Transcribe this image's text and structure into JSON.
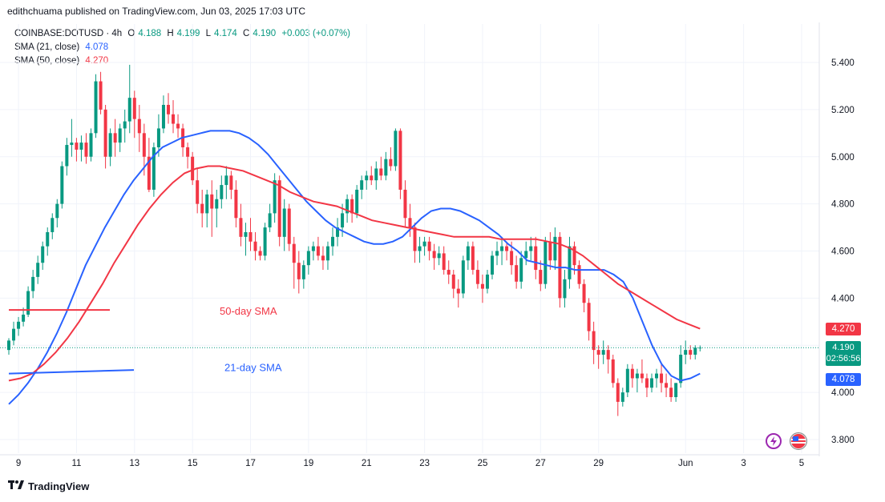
{
  "header": {
    "publisher_line": "edithchuama published on TradingView.com, Jun 03, 2025 17:03 UTC"
  },
  "legend": {
    "symbol": "COINBASE:DOTUSD · 4h",
    "o_key": "O",
    "o_val": "4.188",
    "h_key": "H",
    "h_val": "4.199",
    "l_key": "L",
    "l_val": "4.174",
    "c_key": "C",
    "c_val": "4.190",
    "change": "+0.003 (+0.07%)",
    "sma21_label": "SMA (21, close)",
    "sma21_val": "4.078",
    "sma50_label": "SMA (50, close)",
    "sma50_val": "4.270"
  },
  "tags": {
    "sma50": "4.270",
    "price": "4.190",
    "countdown": "02:56:56",
    "sma21": "4.078"
  },
  "footer": {
    "brand": "TradingView"
  },
  "colors": {
    "up": "#089981",
    "down": "#f23645",
    "sma21": "#2962ff",
    "sma50": "#f23645"
  },
  "chart_data": {
    "type": "candlestick",
    "timeframe": "4h",
    "ylim": [
      3.75,
      5.5
    ],
    "y_ticks": [
      "5.400",
      "5.200",
      "5.000",
      "4.800",
      "4.600",
      "4.400",
      "4.200",
      "4.000",
      "3.800"
    ],
    "y_tick_values": [
      5.4,
      5.2,
      5.0,
      4.8,
      4.6,
      4.4,
      4.2,
      4.0,
      3.8
    ],
    "x_ticks": [
      "9",
      "11",
      "13",
      "15",
      "17",
      "19",
      "21",
      "23",
      "25",
      "27",
      "29",
      "Jun",
      "3",
      "5"
    ],
    "x_tick_index": [
      3,
      15,
      27,
      39,
      51,
      63,
      75,
      87,
      99,
      111,
      123,
      141,
      153,
      165
    ],
    "annotations": [
      {
        "text": "50-day SMA"
      },
      {
        "text": "21-day SMA"
      }
    ],
    "candles": [
      [
        4.18,
        4.23,
        4.16,
        4.22
      ],
      [
        4.22,
        4.3,
        4.2,
        4.27
      ],
      [
        4.27,
        4.32,
        4.24,
        4.3
      ],
      [
        4.3,
        4.36,
        4.28,
        4.33
      ],
      [
        4.33,
        4.45,
        4.32,
        4.43
      ],
      [
        4.43,
        4.52,
        4.4,
        4.49
      ],
      [
        4.49,
        4.58,
        4.46,
        4.55
      ],
      [
        4.55,
        4.64,
        4.52,
        4.62
      ],
      [
        4.62,
        4.7,
        4.58,
        4.68
      ],
      [
        4.68,
        4.76,
        4.65,
        4.74
      ],
      [
        4.74,
        4.82,
        4.7,
        4.8
      ],
      [
        4.8,
        4.98,
        4.78,
        4.96
      ],
      [
        4.96,
        5.08,
        4.92,
        5.05
      ],
      [
        5.05,
        5.16,
        5.0,
        5.06
      ],
      [
        5.06,
        5.08,
        4.98,
        5.03
      ],
      [
        5.03,
        5.09,
        4.98,
        5.06
      ],
      [
        5.06,
        5.1,
        4.97,
        5.0
      ],
      [
        5.0,
        5.12,
        4.98,
        5.1
      ],
      [
        5.1,
        5.35,
        5.08,
        5.32
      ],
      [
        5.32,
        5.36,
        5.18,
        5.2
      ],
      [
        5.2,
        5.22,
        4.95,
        5.0
      ],
      [
        5.0,
        5.12,
        4.96,
        5.1
      ],
      [
        5.1,
        5.16,
        5.0,
        5.06
      ],
      [
        5.06,
        5.14,
        5.02,
        5.12
      ],
      [
        5.12,
        5.2,
        5.06,
        5.15
      ],
      [
        5.15,
        5.39,
        5.1,
        5.25
      ],
      [
        5.25,
        5.28,
        5.08,
        5.16
      ],
      [
        5.16,
        5.22,
        5.02,
        5.1
      ],
      [
        5.1,
        5.14,
        4.92,
        5.0
      ],
      [
        5.0,
        5.08,
        4.85,
        4.86
      ],
      [
        4.86,
        5.06,
        4.83,
        5.04
      ],
      [
        5.04,
        5.18,
        5.0,
        5.12
      ],
      [
        5.12,
        5.26,
        5.1,
        5.22
      ],
      [
        5.22,
        5.27,
        5.14,
        5.18
      ],
      [
        5.18,
        5.24,
        5.1,
        5.14
      ],
      [
        5.14,
        5.18,
        5.08,
        5.12
      ],
      [
        5.12,
        5.14,
        5.0,
        5.04
      ],
      [
        5.04,
        5.06,
        4.95,
        5.0
      ],
      [
        5.0,
        5.02,
        4.88,
        4.9
      ],
      [
        4.9,
        4.95,
        4.76,
        4.8
      ],
      [
        4.8,
        4.86,
        4.7,
        4.76
      ],
      [
        4.76,
        4.86,
        4.7,
        4.84
      ],
      [
        4.84,
        4.9,
        4.66,
        4.78
      ],
      [
        4.78,
        4.86,
        4.7,
        4.82
      ],
      [
        4.82,
        4.92,
        4.78,
        4.88
      ],
      [
        4.88,
        4.96,
        4.82,
        4.92
      ],
      [
        4.92,
        4.94,
        4.82,
        4.86
      ],
      [
        4.86,
        4.9,
        4.7,
        4.74
      ],
      [
        4.74,
        4.8,
        4.62,
        4.66
      ],
      [
        4.66,
        4.72,
        4.58,
        4.68
      ],
      [
        4.68,
        4.74,
        4.6,
        4.64
      ],
      [
        4.64,
        4.68,
        4.56,
        4.6
      ],
      [
        4.6,
        4.62,
        4.56,
        4.58
      ],
      [
        4.58,
        4.72,
        4.56,
        4.7
      ],
      [
        4.7,
        4.8,
        4.68,
        4.76
      ],
      [
        4.76,
        4.93,
        4.72,
        4.9
      ],
      [
        4.9,
        4.92,
        4.62,
        4.66
      ],
      [
        4.66,
        4.82,
        4.6,
        4.78
      ],
      [
        4.78,
        4.8,
        4.6,
        4.63
      ],
      [
        4.63,
        4.66,
        4.44,
        4.55
      ],
      [
        4.55,
        4.6,
        4.42,
        4.48
      ],
      [
        4.48,
        4.56,
        4.44,
        4.54
      ],
      [
        4.54,
        4.62,
        4.5,
        4.6
      ],
      [
        4.6,
        4.64,
        4.56,
        4.62
      ],
      [
        4.62,
        4.66,
        4.56,
        4.58
      ],
      [
        4.58,
        4.62,
        4.52,
        4.56
      ],
      [
        4.56,
        4.64,
        4.52,
        4.62
      ],
      [
        4.62,
        4.7,
        4.58,
        4.66
      ],
      [
        4.66,
        4.74,
        4.62,
        4.7
      ],
      [
        4.7,
        4.8,
        4.66,
        4.76
      ],
      [
        4.76,
        4.84,
        4.72,
        4.82
      ],
      [
        4.82,
        4.84,
        4.72,
        4.76
      ],
      [
        4.76,
        4.88,
        4.74,
        4.86
      ],
      [
        4.86,
        4.92,
        4.82,
        4.9
      ],
      [
        4.9,
        4.94,
        4.86,
        4.92
      ],
      [
        4.92,
        4.96,
        4.88,
        4.9
      ],
      [
        4.9,
        4.98,
        4.86,
        4.95
      ],
      [
        4.95,
        5.0,
        4.9,
        4.92
      ],
      [
        4.92,
        5.02,
        4.9,
        4.99
      ],
      [
        4.99,
        5.04,
        4.94,
        4.96
      ],
      [
        4.96,
        5.12,
        4.94,
        5.11
      ],
      [
        5.11,
        5.12,
        4.82,
        4.86
      ],
      [
        4.86,
        4.9,
        4.7,
        4.74
      ],
      [
        4.74,
        4.8,
        4.66,
        4.7
      ],
      [
        4.7,
        4.72,
        4.55,
        4.6
      ],
      [
        4.6,
        4.66,
        4.55,
        4.62
      ],
      [
        4.62,
        4.66,
        4.58,
        4.64
      ],
      [
        4.64,
        4.66,
        4.56,
        4.6
      ],
      [
        4.6,
        4.63,
        4.52,
        4.57
      ],
      [
        4.57,
        4.62,
        4.54,
        4.59
      ],
      [
        4.59,
        4.62,
        4.5,
        4.52
      ],
      [
        4.52,
        4.56,
        4.46,
        4.5
      ],
      [
        4.5,
        4.52,
        4.4,
        4.44
      ],
      [
        4.44,
        4.48,
        4.36,
        4.42
      ],
      [
        4.42,
        4.58,
        4.4,
        4.56
      ],
      [
        4.56,
        4.64,
        4.52,
        4.62
      ],
      [
        4.62,
        4.64,
        4.5,
        4.52
      ],
      [
        4.52,
        4.56,
        4.44,
        4.46
      ],
      [
        4.46,
        4.5,
        4.38,
        4.44
      ],
      [
        4.44,
        4.52,
        4.42,
        4.5
      ],
      [
        4.5,
        4.6,
        4.48,
        4.58
      ],
      [
        4.58,
        4.64,
        4.54,
        4.6
      ],
      [
        4.6,
        4.66,
        4.54,
        4.62
      ],
      [
        4.62,
        4.64,
        4.56,
        4.6
      ],
      [
        4.6,
        4.64,
        4.5,
        4.54
      ],
      [
        4.54,
        4.58,
        4.44,
        4.47
      ],
      [
        4.47,
        4.6,
        4.44,
        4.57
      ],
      [
        4.57,
        4.64,
        4.54,
        4.6
      ],
      [
        4.6,
        4.66,
        4.56,
        4.62
      ],
      [
        4.62,
        4.66,
        4.48,
        4.52
      ],
      [
        4.52,
        4.56,
        4.43,
        4.46
      ],
      [
        4.46,
        4.66,
        4.44,
        4.64
      ],
      [
        4.64,
        4.68,
        4.52,
        4.56
      ],
      [
        4.56,
        4.7,
        4.52,
        4.66
      ],
      [
        4.66,
        4.68,
        4.36,
        4.4
      ],
      [
        4.4,
        4.52,
        4.36,
        4.48
      ],
      [
        4.48,
        4.66,
        4.44,
        4.62
      ],
      [
        4.62,
        4.64,
        4.5,
        4.54
      ],
      [
        4.54,
        4.56,
        4.44,
        4.46
      ],
      [
        4.46,
        4.48,
        4.34,
        4.38
      ],
      [
        4.38,
        4.4,
        4.22,
        4.26
      ],
      [
        4.26,
        4.3,
        4.12,
        4.18
      ],
      [
        4.18,
        4.2,
        4.1,
        4.16
      ],
      [
        4.16,
        4.22,
        4.12,
        4.18
      ],
      [
        4.18,
        4.2,
        4.08,
        4.14
      ],
      [
        4.14,
        4.16,
        4.02,
        4.04
      ],
      [
        4.04,
        4.06,
        3.9,
        3.96
      ],
      [
        3.96,
        4.02,
        3.94,
        4.0
      ],
      [
        4.0,
        4.12,
        3.98,
        4.1
      ],
      [
        4.1,
        4.12,
        4.02,
        4.06
      ],
      [
        4.06,
        4.1,
        4.0,
        4.08
      ],
      [
        4.08,
        4.14,
        4.04,
        4.06
      ],
      [
        4.06,
        4.08,
        3.98,
        4.02
      ],
      [
        4.02,
        4.08,
        4.0,
        4.06
      ],
      [
        4.06,
        4.1,
        4.02,
        4.08
      ],
      [
        4.08,
        4.12,
        4.0,
        4.04
      ],
      [
        4.04,
        4.08,
        3.98,
        4.02
      ],
      [
        4.02,
        4.06,
        3.96,
        3.98
      ],
      [
        3.98,
        4.04,
        3.96,
        4.04
      ],
      [
        4.04,
        4.2,
        4.02,
        4.16
      ],
      [
        4.16,
        4.22,
        4.12,
        4.18
      ],
      [
        4.18,
        4.2,
        4.14,
        4.16
      ],
      [
        4.16,
        4.2,
        4.14,
        4.19
      ],
      [
        4.188,
        4.199,
        4.174,
        4.19
      ]
    ],
    "series": [
      {
        "name": "SMA (21, close)",
        "last": 4.078,
        "values": [
          3.95,
          3.99,
          4.04,
          4.1,
          4.17,
          4.25,
          4.34,
          4.44,
          4.54,
          4.62,
          4.7,
          4.77,
          4.84,
          4.9,
          4.95,
          5.0,
          5.04,
          5.06,
          5.08,
          5.09,
          5.1,
          5.11,
          5.11,
          5.11,
          5.1,
          5.08,
          5.05,
          5.01,
          4.96,
          4.91,
          4.86,
          4.81,
          4.77,
          4.73,
          4.7,
          4.68,
          4.66,
          4.64,
          4.63,
          4.63,
          4.64,
          4.66,
          4.7,
          4.74,
          4.77,
          4.78,
          4.78,
          4.77,
          4.75,
          4.73,
          4.7,
          4.67,
          4.63,
          4.6,
          4.56,
          4.55,
          4.54,
          4.53,
          4.53,
          4.52,
          4.52,
          4.52,
          4.52,
          4.5,
          4.47,
          4.4,
          4.3,
          4.2,
          4.12,
          4.07,
          4.05,
          4.06,
          4.08
        ]
      },
      {
        "name": "SMA (50, close)",
        "last": 4.27,
        "values": [
          4.05,
          4.06,
          4.08,
          4.12,
          4.17,
          4.23,
          4.3,
          4.38,
          4.46,
          4.55,
          4.63,
          4.71,
          4.78,
          4.84,
          4.89,
          4.93,
          4.95,
          4.96,
          4.96,
          4.95,
          4.94,
          4.92,
          4.9,
          4.88,
          4.85,
          4.83,
          4.81,
          4.8,
          4.79,
          4.77,
          4.75,
          4.73,
          4.72,
          4.71,
          4.7,
          4.69,
          4.68,
          4.67,
          4.66,
          4.66,
          4.66,
          4.66,
          4.65,
          4.65,
          4.65,
          4.65,
          4.64,
          4.63,
          4.61,
          4.58,
          4.54,
          4.5,
          4.46,
          4.43,
          4.4,
          4.37,
          4.34,
          4.31,
          4.29,
          4.27
        ]
      }
    ],
    "drawn_lines": [
      {
        "label": "50-day SMA",
        "y0": 4.35,
        "y1": 4.35
      },
      {
        "label": "21-day SMA",
        "y0": 4.08,
        "y1": 4.095
      }
    ]
  }
}
